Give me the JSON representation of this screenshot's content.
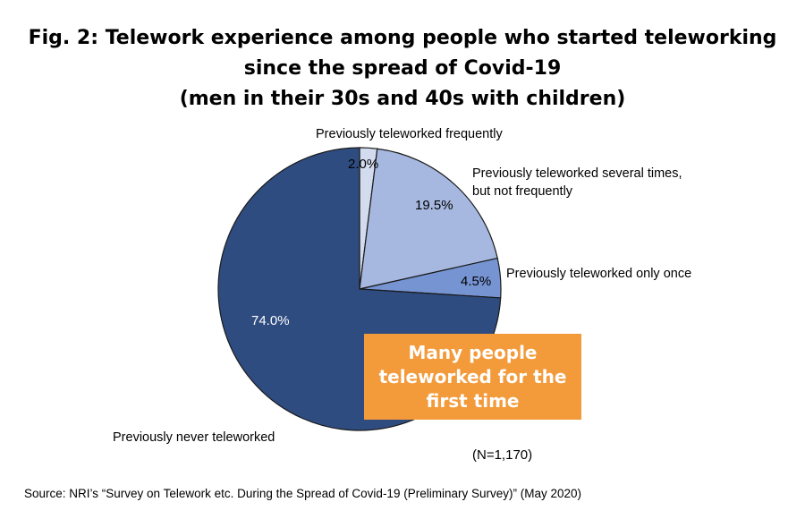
{
  "title_lines": [
    "Fig. 2: Telework experience among people who started teleworking",
    "since the spread of Covid-19",
    "(men in their 30s and 40s with children)"
  ],
  "chart_data": {
    "type": "pie",
    "title": "Fig. 2: Telework experience among people who started teleworking since the spread of Covid-19 (men in their 30s and 40s with children)",
    "categories": [
      "Previously teleworked frequently",
      "Previously teleworked several times, but not frequently",
      "Previously teleworked only once",
      "Previously never teleworked"
    ],
    "values": [
      2.0,
      19.5,
      4.5,
      74.0
    ],
    "value_labels": [
      "2.0%",
      "19.5%",
      "4.5%",
      "74.0%"
    ],
    "colors": [
      "#d3dcee",
      "#a6b8e0",
      "#7694d2",
      "#2f4c80"
    ],
    "start_angle_deg": 0,
    "direction": "clockwise",
    "sample_note": "(N=1,170)"
  },
  "labels": {
    "frequently": "Previously teleworked frequently",
    "several_line1": "Previously teleworked several times,",
    "several_line2": "but not frequently",
    "once": "Previously teleworked only once",
    "never": "Previously never teleworked"
  },
  "callout": {
    "lines": [
      "Many people",
      "teleworked for the",
      "first time"
    ],
    "color": "#f39a3a"
  },
  "source": "Source: NRI’s “Survey on Telework etc. During the Spread of Covid-19 (Preliminary Survey)” (May 2020)"
}
